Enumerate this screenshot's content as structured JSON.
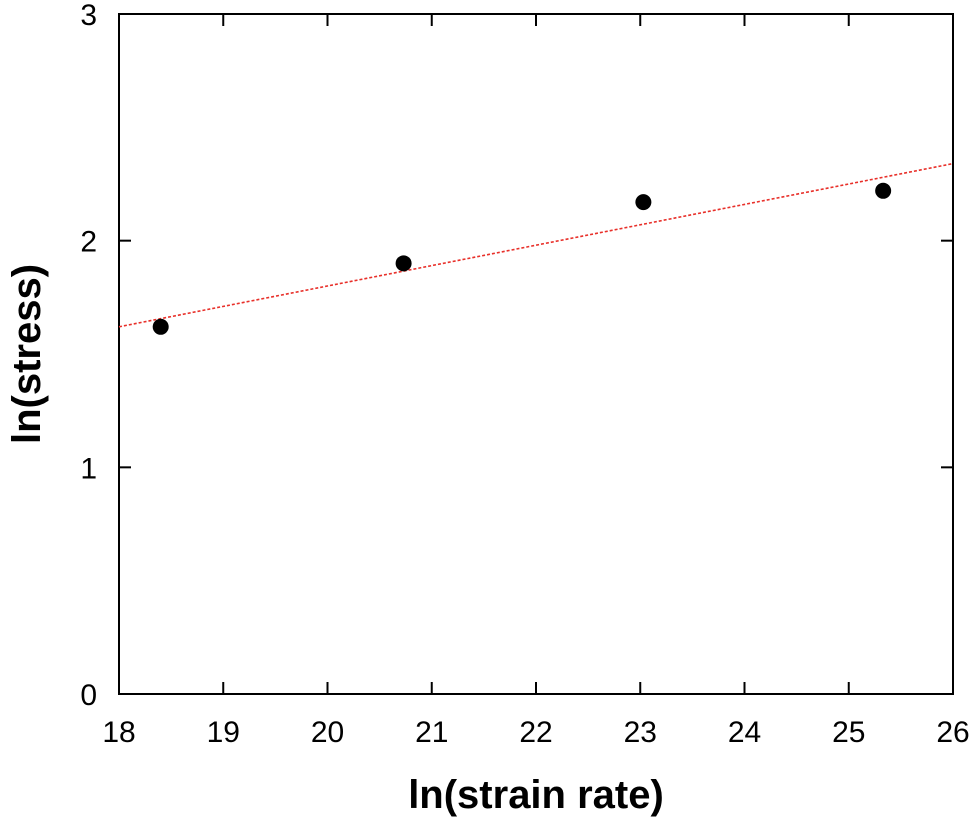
{
  "chart_data": {
    "type": "scatter",
    "title": "",
    "xlabel": "ln(strain rate)",
    "ylabel": "ln(stress)",
    "xlim": [
      18,
      26
    ],
    "ylim": [
      0,
      3
    ],
    "x_ticks": [
      "18",
      "19",
      "20",
      "21",
      "22",
      "23",
      "24",
      "25",
      "26"
    ],
    "y_ticks": [
      "0",
      "1",
      "2",
      "3"
    ],
    "grid": false,
    "legend": "none",
    "series": [
      {
        "kind": "scatter",
        "color": "#000000",
        "points": [
          {
            "x": 18.4,
            "y": 1.62
          },
          {
            "x": 20.73,
            "y": 1.9
          },
          {
            "x": 23.03,
            "y": 2.17
          },
          {
            "x": 25.33,
            "y": 2.22
          }
        ]
      },
      {
        "kind": "fit-line",
        "color": "#e8302a",
        "style": "dotted",
        "points": [
          {
            "x": 18,
            "y": 1.62
          },
          {
            "x": 26,
            "y": 2.34
          }
        ]
      }
    ]
  }
}
